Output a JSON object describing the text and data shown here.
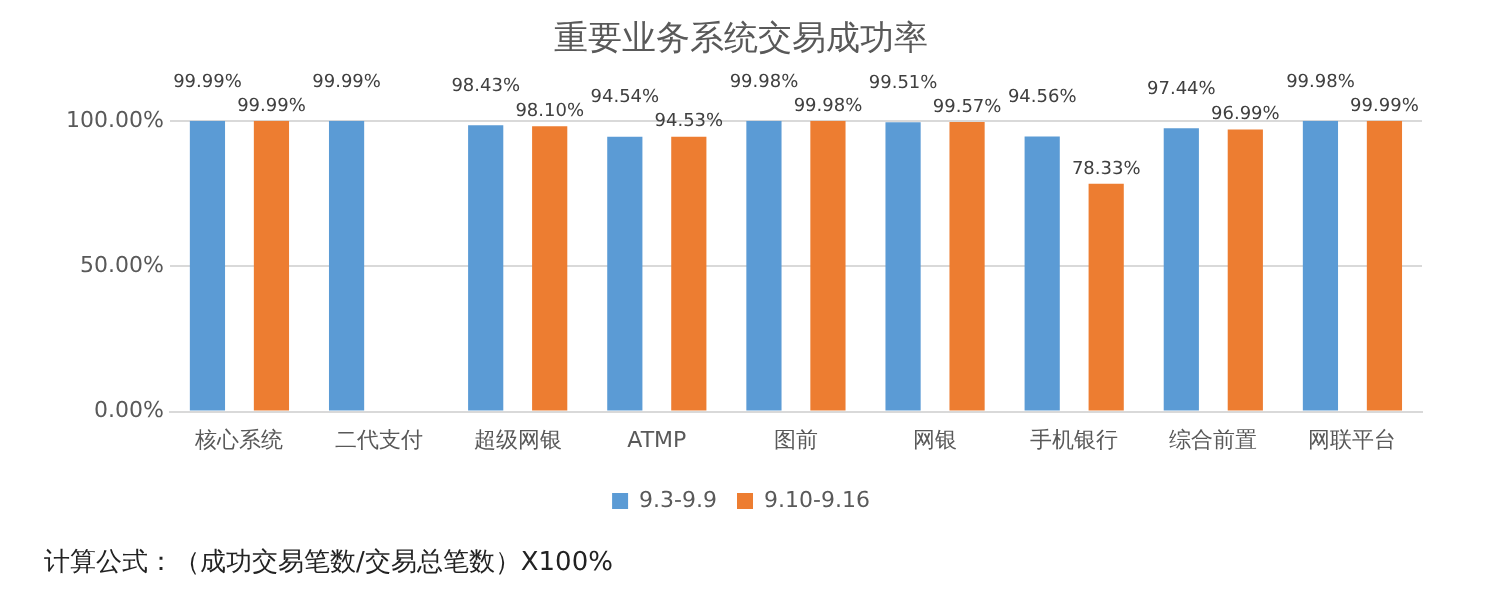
{
  "chart_data": {
    "type": "bar",
    "title": "重要业务系统交易成功率",
    "categories": [
      "核心系统",
      "二代支付",
      "超级网银",
      "ATMP",
      "图前",
      "网银",
      "手机银行",
      "综合前置",
      "网联平台"
    ],
    "series": [
      {
        "name": "9.3-9.9",
        "color": "#5b9bd5",
        "values": [
          99.99,
          99.99,
          98.43,
          94.54,
          99.98,
          99.51,
          94.56,
          97.44,
          99.98
        ],
        "value_labels": [
          "99.99%",
          "99.99%",
          "98.43%",
          "94.54%",
          "99.98%",
          "99.51%",
          "94.56%",
          "97.44%",
          "99.98%"
        ]
      },
      {
        "name": "9.10-9.16",
        "color": "#ed7d31",
        "values": [
          99.99,
          null,
          98.1,
          94.53,
          99.98,
          99.57,
          78.33,
          96.99,
          99.99
        ],
        "value_labels": [
          "99.99%",
          null,
          "98.10%",
          "94.53%",
          "99.98%",
          "99.57%",
          "78.33%",
          "96.99%",
          "99.99%"
        ]
      }
    ],
    "ylim": [
      0,
      100
    ],
    "yticks": [
      {
        "value": 0,
        "label": "0.00%"
      },
      {
        "value": 50,
        "label": "50.00%"
      },
      {
        "value": 100,
        "label": "100.00%"
      }
    ],
    "grid": "y",
    "legend": "bottom",
    "annotations": [
      "计算公式：（成功交易笔数/交易总笔数）X100%"
    ]
  }
}
